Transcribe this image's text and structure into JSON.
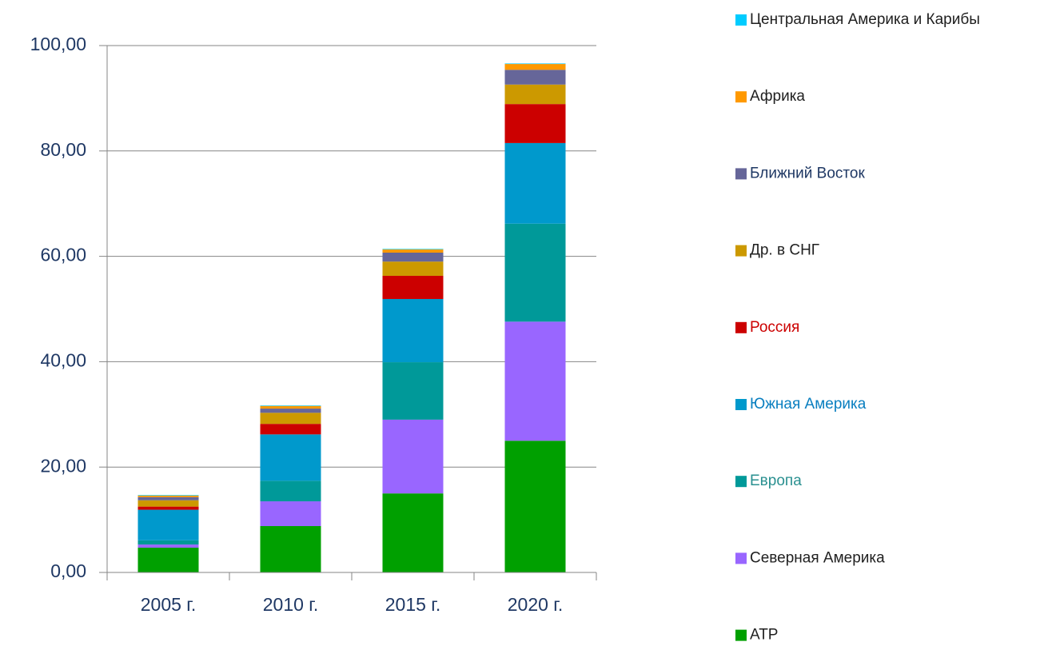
{
  "chart_data": {
    "type": "stacked_bar",
    "categories": [
      "2005 г.",
      "2010 г.",
      "2015 г.",
      "2020 г."
    ],
    "series": [
      {
        "name": "АТР",
        "color": "#00a000",
        "label_color": "#1f1f1f",
        "values": [
          4.7,
          8.8,
          15.0,
          25.0
        ]
      },
      {
        "name": "Северная Америка",
        "color": "#9966ff",
        "label_color": "#1f1f1f",
        "values": [
          0.6,
          4.7,
          14.0,
          22.6
        ]
      },
      {
        "name": "Европа",
        "color": "#009999",
        "label_color": "#2a9090",
        "values": [
          0.8,
          3.9,
          10.9,
          18.6
        ]
      },
      {
        "name": "Южная Америка",
        "color": "#0099cc",
        "label_color": "#0a7fc0",
        "values": [
          5.8,
          8.8,
          12.0,
          15.3
        ]
      },
      {
        "name": "Россия",
        "color": "#cc0000",
        "label_color": "#cc0000",
        "values": [
          0.6,
          2.0,
          4.4,
          7.4
        ]
      },
      {
        "name": "Др. в СНГ",
        "color": "#cc9900",
        "label_color": "#1f1f1f",
        "values": [
          1.2,
          2.1,
          2.7,
          3.7
        ]
      },
      {
        "name": "Ближний Восток",
        "color": "#666699",
        "label_color": "#1f3864",
        "values": [
          0.6,
          0.8,
          1.7,
          2.8
        ]
      },
      {
        "name": "Африка",
        "color": "#ff9900",
        "label_color": "#1f1f1f",
        "values": [
          0.3,
          0.5,
          0.6,
          1.1
        ]
      },
      {
        "name": "Центральная Америка и Карибы",
        "color": "#00ccff",
        "label_color": "#1f1f1f",
        "values": [
          0.1,
          0.1,
          0.1,
          0.1
        ]
      }
    ],
    "ylim": [
      0,
      100
    ],
    "yticks": [
      {
        "value": 0,
        "label": "0,00"
      },
      {
        "value": 20,
        "label": "20,00"
      },
      {
        "value": 40,
        "label": "40,00"
      },
      {
        "value": 60,
        "label": "60,00"
      },
      {
        "value": 80,
        "label": "80,00"
      },
      {
        "value": 100,
        "label": "100,00"
      }
    ],
    "grid": true,
    "legend": "right"
  }
}
